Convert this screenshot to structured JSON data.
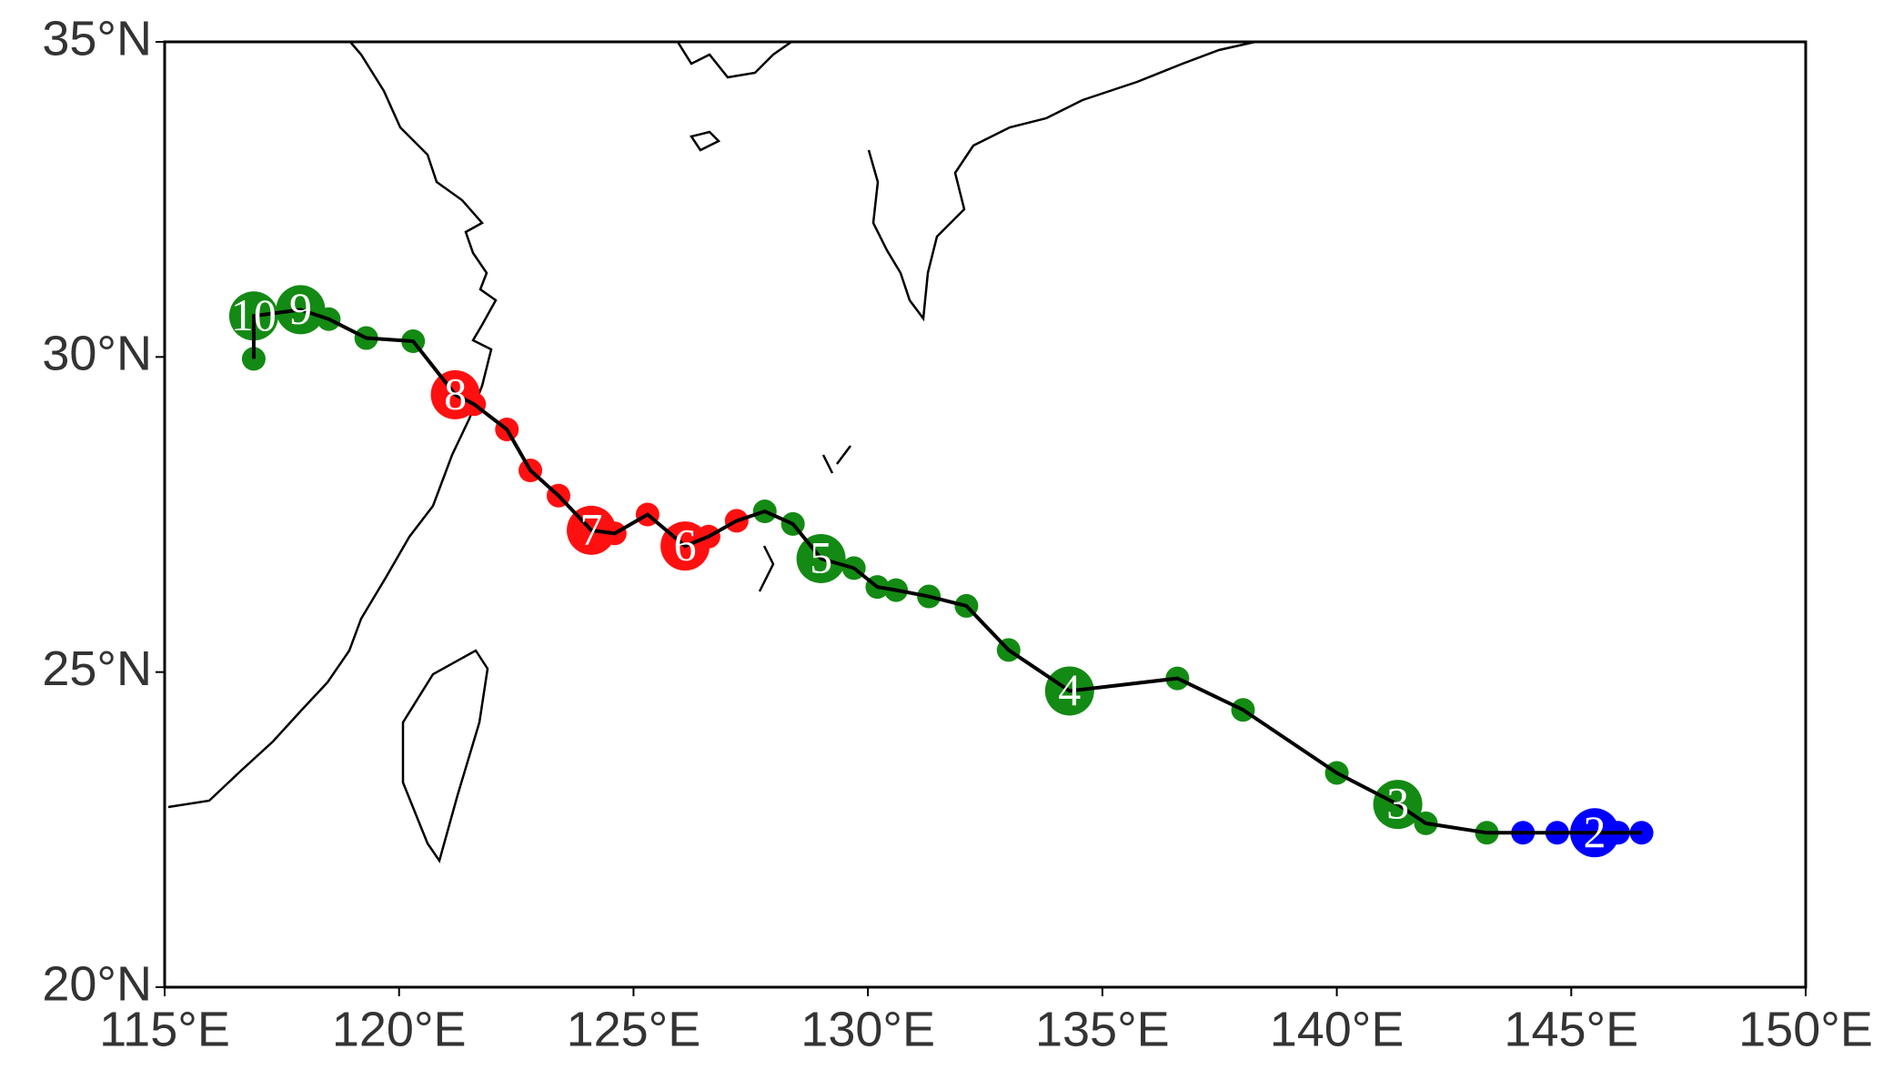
{
  "chart_data": {
    "type": "track",
    "x": [
      146.5,
      146.0,
      145.5,
      144.7,
      143.97,
      143.2,
      141.9,
      141.3,
      140.0,
      138.0,
      136.6,
      134.3,
      133.0,
      132.1,
      131.3,
      130.6,
      130.2,
      129.7,
      129.0,
      128.4,
      127.8,
      127.2,
      126.6,
      126.1,
      125.3,
      124.6,
      124.1,
      123.4,
      122.8,
      122.3,
      121.6,
      121.2,
      120.3,
      119.3,
      118.5,
      117.9,
      116.9,
      116.9
    ],
    "y": [
      22.45,
      22.45,
      22.45,
      22.45,
      22.45,
      22.45,
      22.6,
      22.9,
      23.4,
      24.4,
      24.9,
      24.7,
      25.35,
      26.05,
      26.2,
      26.3,
      26.35,
      26.65,
      26.8,
      27.35,
      27.55,
      27.4,
      27.15,
      27.0,
      27.5,
      27.2,
      27.25,
      27.8,
      28.2,
      28.85,
      29.25,
      29.4,
      30.25,
      30.3,
      30.6,
      30.75,
      30.65,
      29.97
    ],
    "point_colors": [
      "#0000ff",
      "#0000ff",
      "#0000ff",
      "#0000ff",
      "#0000ff",
      "#138a13",
      "#138a13",
      "#138a13",
      "#138a13",
      "#138a13",
      "#138a13",
      "#138a13",
      "#138a13",
      "#138a13",
      "#138a13",
      "#138a13",
      "#138a13",
      "#138a13",
      "#138a13",
      "#138a13",
      "#138a13",
      "#ff1010",
      "#ff1010",
      "#ff1010",
      "#ff1010",
      "#ff1010",
      "#ff1010",
      "#ff1010",
      "#ff1010",
      "#ff1010",
      "#ff1010",
      "#ff1010",
      "#138a13",
      "#138a13",
      "#138a13",
      "#138a13",
      "#138a13",
      "#138a13"
    ],
    "labels": [
      null,
      null,
      "2",
      null,
      null,
      null,
      null,
      "3",
      null,
      null,
      null,
      "4",
      null,
      null,
      null,
      null,
      null,
      null,
      "5",
      null,
      null,
      null,
      null,
      "6",
      null,
      null,
      "7",
      null,
      null,
      null,
      null,
      "8",
      null,
      null,
      null,
      "9",
      "10",
      null
    ],
    "line_color": "#000000",
    "xlim": [
      115,
      150
    ],
    "ylim": [
      20,
      35
    ],
    "xticks": [
      {
        "value": 115,
        "label": "115°E"
      },
      {
        "value": 120,
        "label": "120°E"
      },
      {
        "value": 125,
        "label": "125°E"
      },
      {
        "value": 130,
        "label": "130°E"
      },
      {
        "value": 135,
        "label": "135°E"
      },
      {
        "value": 140,
        "label": "140°E"
      },
      {
        "value": 145,
        "label": "145°E"
      },
      {
        "value": 150,
        "label": "150°E"
      }
    ],
    "yticks": [
      {
        "value": 20,
        "label": "20°N"
      },
      {
        "value": 25,
        "label": "25°N"
      },
      {
        "value": 30,
        "label": "30°N"
      },
      {
        "value": 35,
        "label": "35°N"
      }
    ]
  }
}
